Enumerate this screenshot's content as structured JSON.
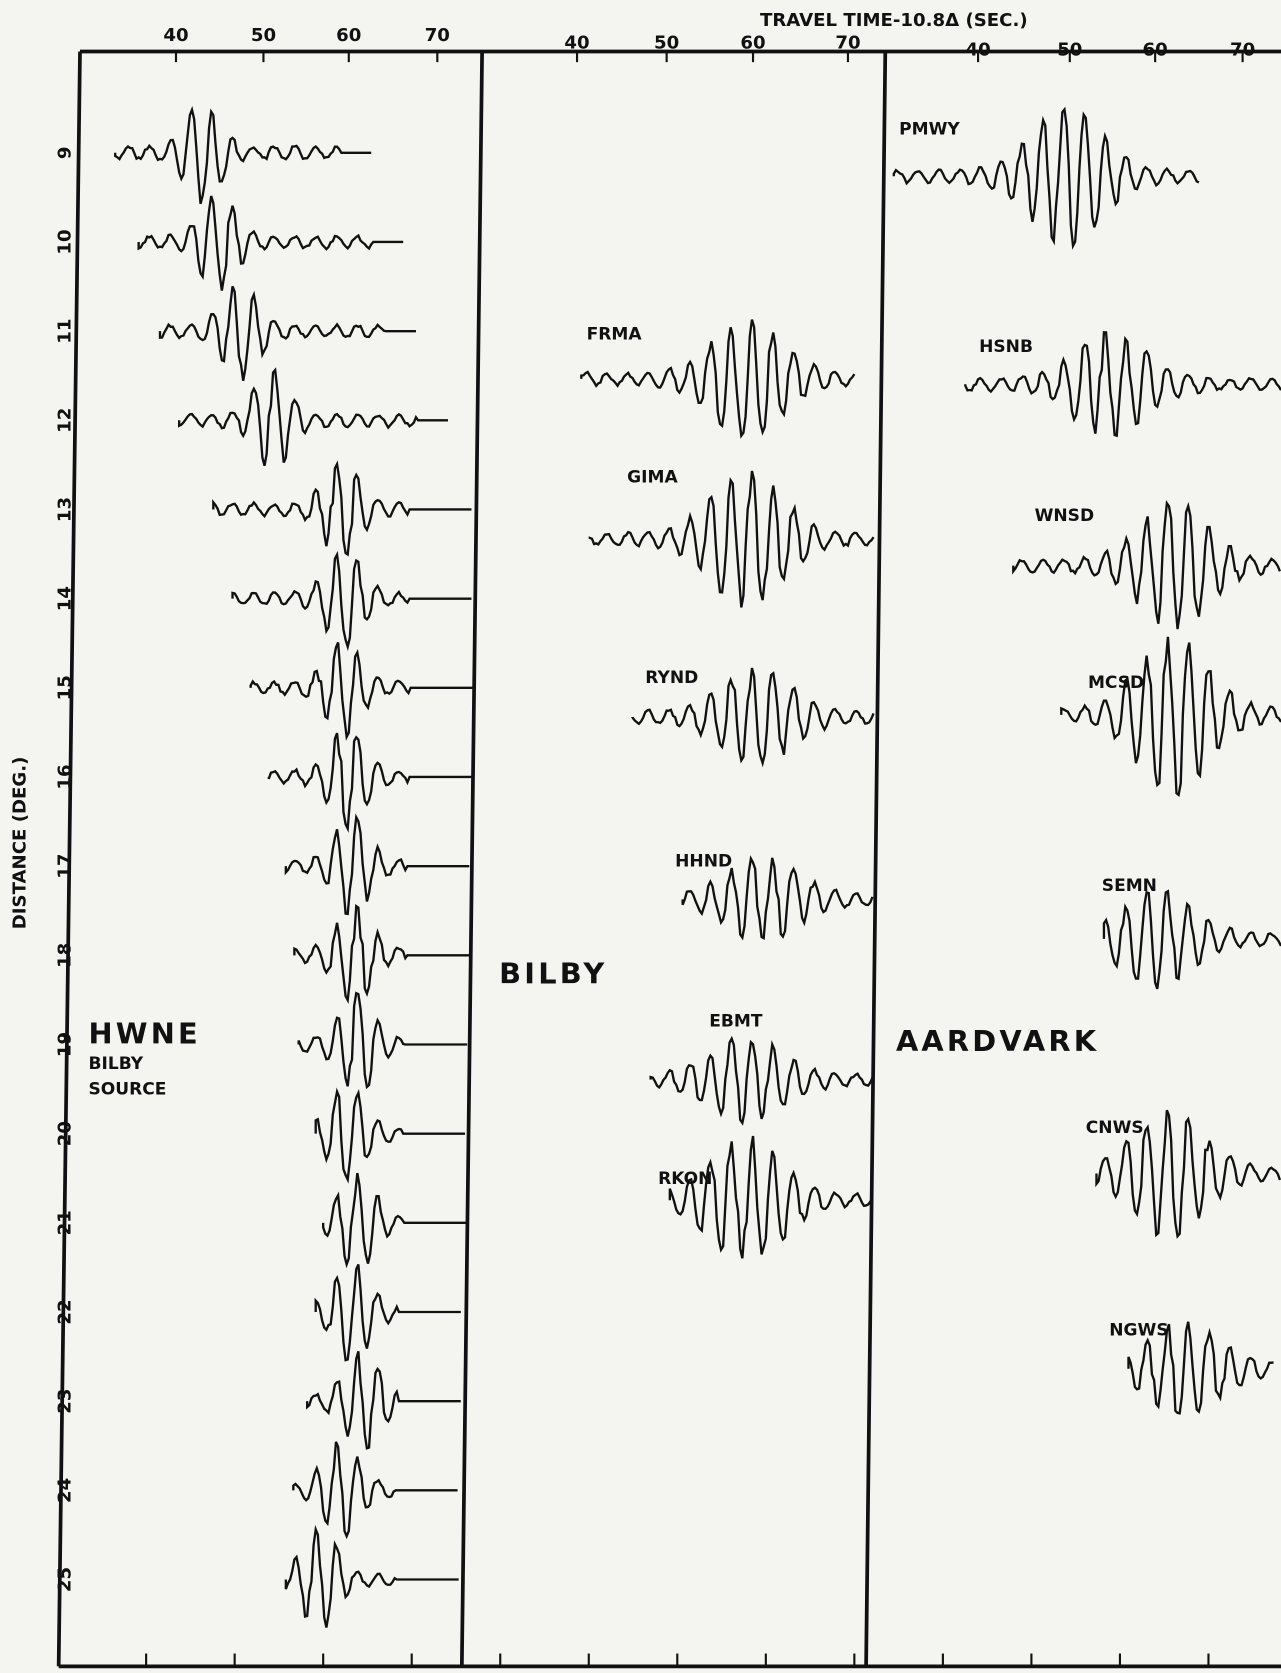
{
  "x_axis": {
    "title": "TRAVEL TIME-10.8Δ (SEC.)",
    "panels": [
      [
        40,
        50,
        60,
        70
      ],
      [
        40,
        50,
        60,
        70
      ],
      [
        40,
        50,
        60,
        70
      ]
    ]
  },
  "y_axis": {
    "title": "DISTANCE (DEG.)",
    "ticks": [
      9,
      10,
      11,
      12,
      13,
      14,
      15,
      16,
      17,
      18,
      19,
      20,
      21,
      22,
      23,
      24,
      25
    ]
  },
  "panels": [
    {
      "title": "HWNE",
      "subtitle": [
        "BILBY",
        "SOURCE"
      ]
    },
    {
      "title": "BILBY"
    },
    {
      "title": "AARDVARK"
    }
  ],
  "stations": [
    {
      "name": "FRMA",
      "panel": 1
    },
    {
      "name": "GIMA",
      "panel": 1
    },
    {
      "name": "RYND",
      "panel": 1
    },
    {
      "name": "HHND",
      "panel": 1
    },
    {
      "name": "EBMT",
      "panel": 1
    },
    {
      "name": "RKON",
      "panel": 1
    },
    {
      "name": "PMWY",
      "panel": 2
    },
    {
      "name": "HSNB",
      "panel": 2
    },
    {
      "name": "WNSD",
      "panel": 2
    },
    {
      "name": "MCSD",
      "panel": 2
    },
    {
      "name": "SEMN",
      "panel": 2
    },
    {
      "name": "CNWS",
      "panel": 2
    },
    {
      "name": "NGWS",
      "panel": 2
    }
  ]
}
